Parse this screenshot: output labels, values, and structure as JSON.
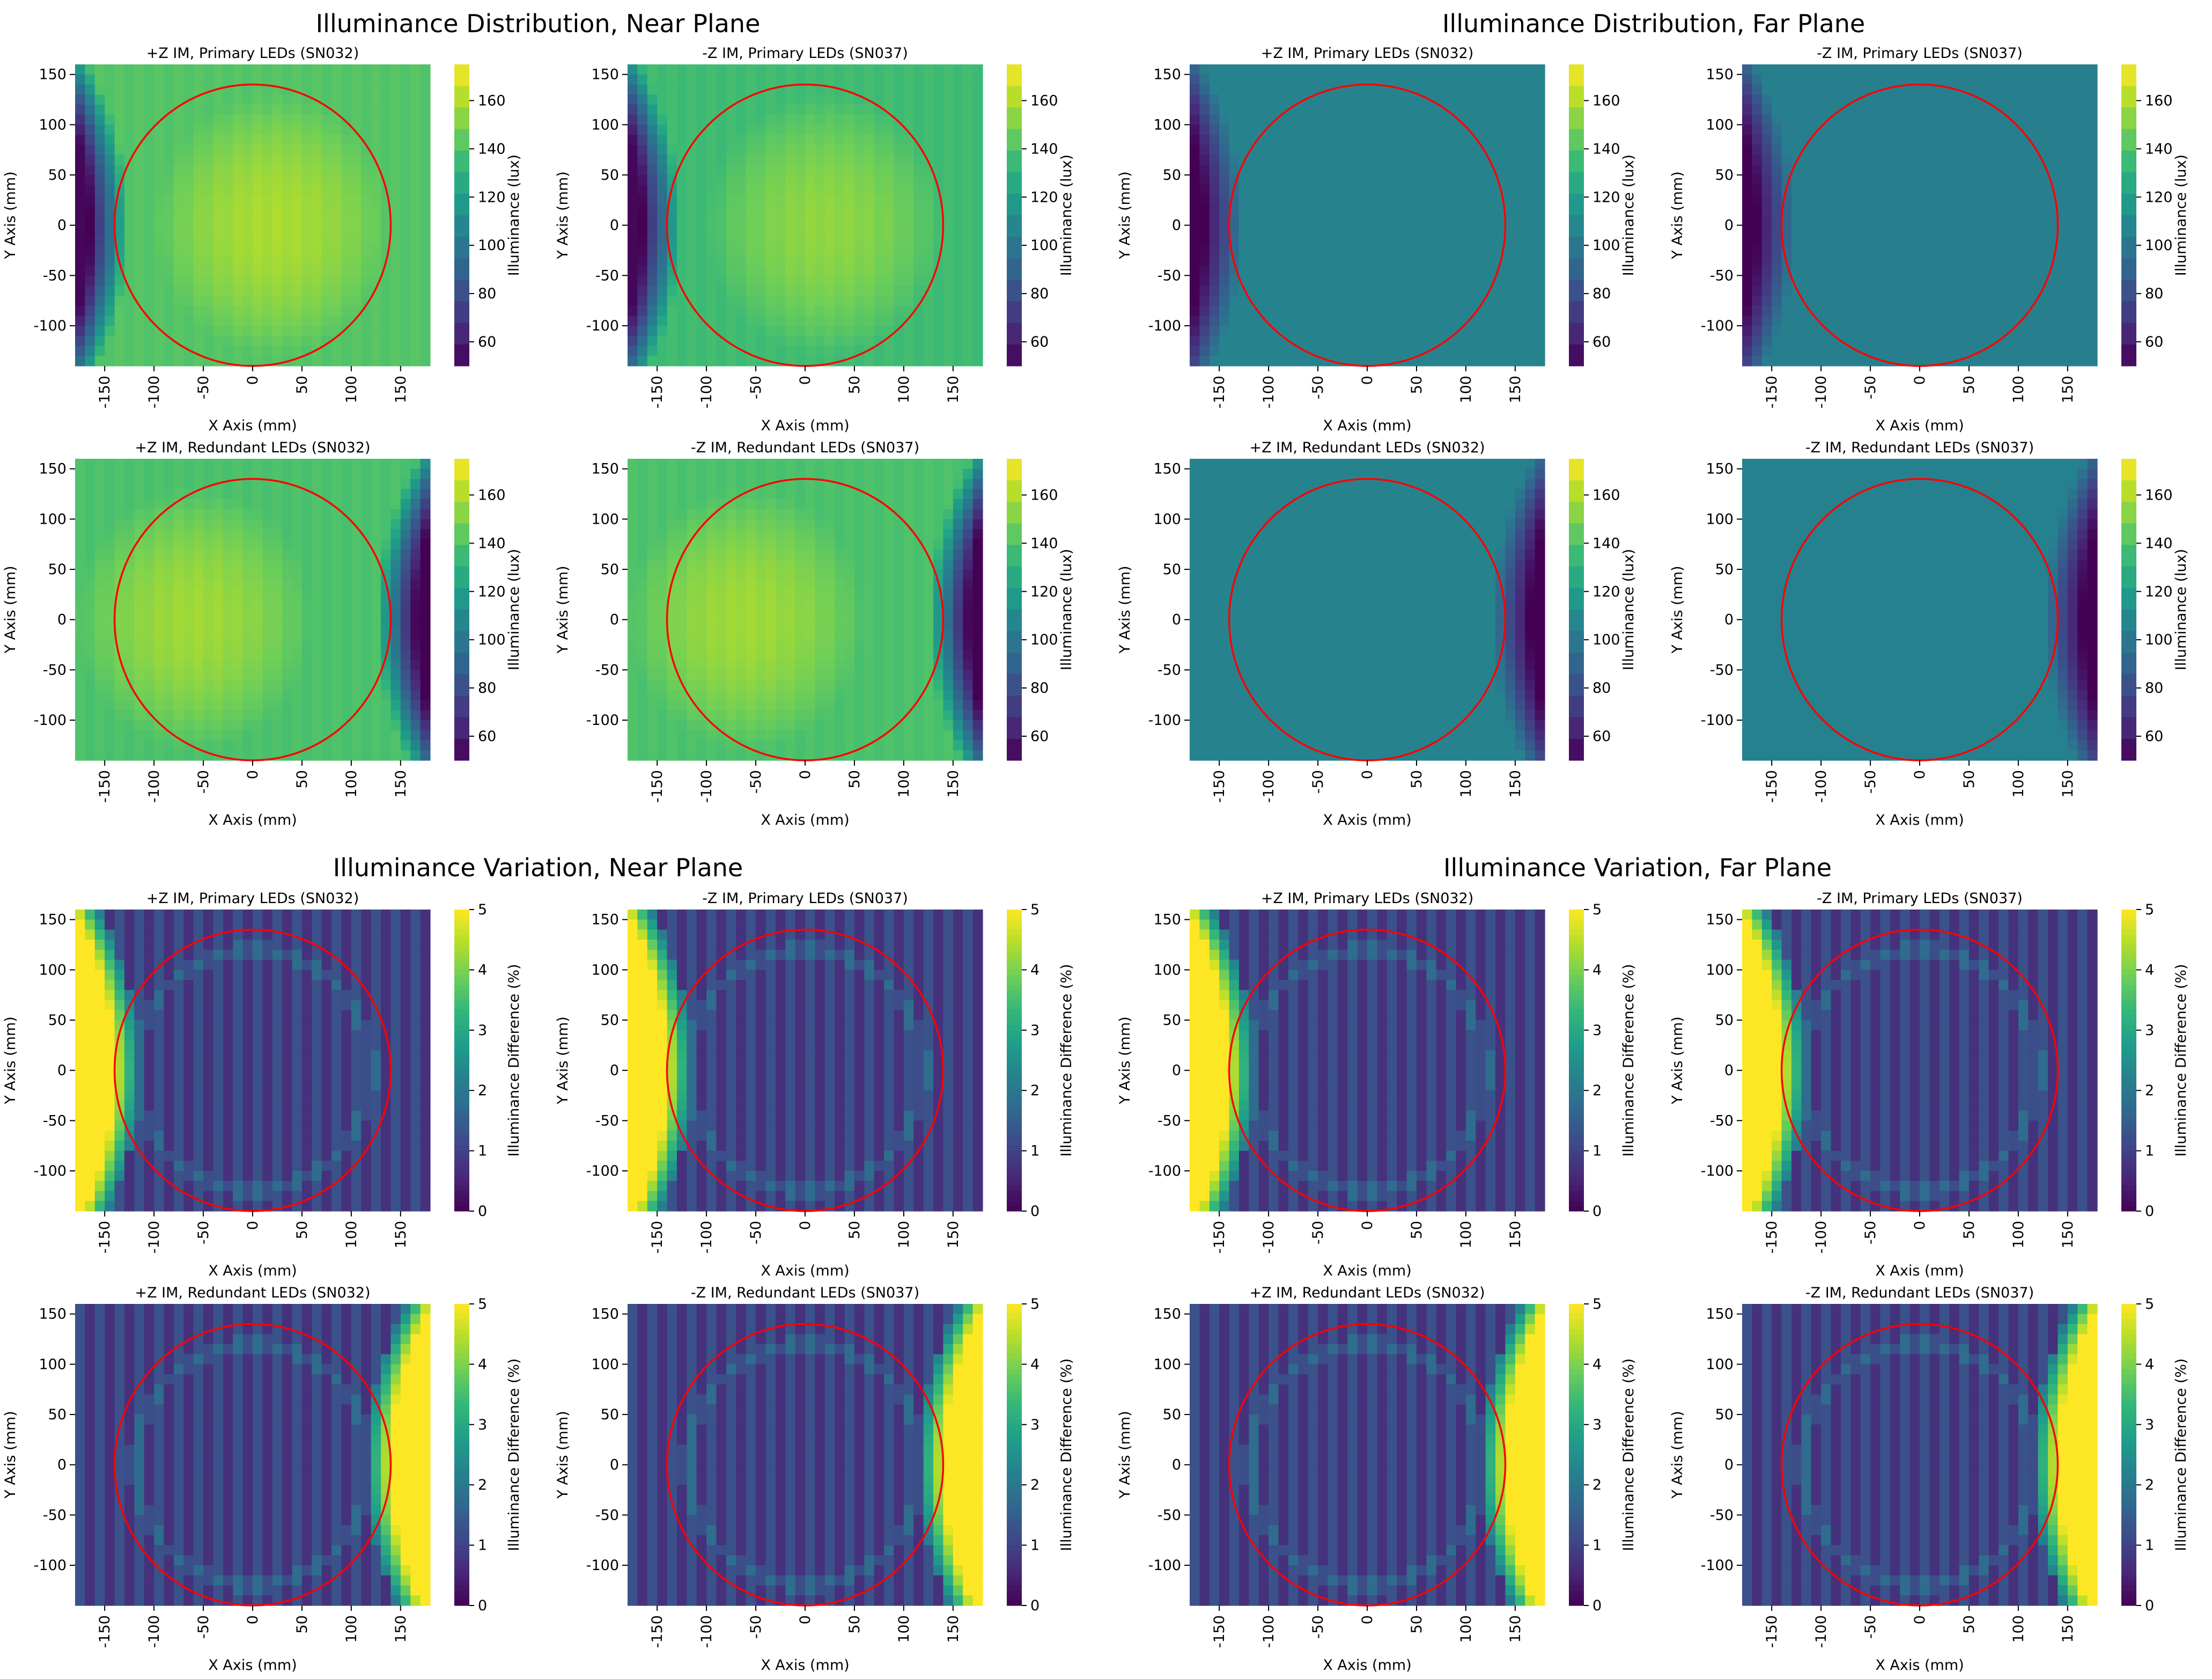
{
  "section_titles": [
    "Illuminance Distribution, Near Plane",
    "Illuminance Distribution, Far Plane",
    "Illuminance Variation, Near Plane",
    "Illuminance Variation, Far Plane"
  ],
  "colors": {
    "circle": "#ff0000",
    "colormap": "viridis",
    "viridis_stops": [
      "#440154",
      "#482878",
      "#3e4989",
      "#31688e",
      "#26828e",
      "#1f9e89",
      "#35b779",
      "#6ece58",
      "#b5de2b",
      "#fde725"
    ]
  },
  "chart_data": [
    {
      "type": "heatmap",
      "panel": "dist-near-1",
      "title": "+Z IM, Primary LEDs (SN032)",
      "xlabel": "X Axis (mm)",
      "ylabel": "Y Axis (mm)",
      "cbar_label": "Illuminance (lux)",
      "xticks": [
        -150,
        -100,
        -50,
        0,
        50,
        100,
        150
      ],
      "xtick_labels": [
        "-150",
        "-100",
        "-50",
        "0",
        "50",
        "100",
        "150"
      ],
      "yticks": [
        150,
        100,
        50,
        0,
        -50,
        -100
      ],
      "ytick_labels": [
        "150",
        "100",
        "50",
        "0",
        "-50",
        "-100"
      ],
      "show_ylabels": true,
      "xlim": [
        -180,
        180
      ],
      "ylim": [
        -140,
        160
      ],
      "clim": [
        50,
        175
      ],
      "cticks": [
        60,
        80,
        100,
        120,
        140,
        160
      ],
      "cbar_type": "banded",
      "circle": {
        "cx": 0,
        "cy": 0,
        "r": 140
      },
      "model": "dist-left",
      "base": 140
    },
    {
      "type": "heatmap",
      "panel": "dist-near-2",
      "title": "-Z IM, Primary LEDs (SN037)",
      "xlabel": "X Axis (mm)",
      "ylabel": "Y Axis (mm)",
      "cbar_label": "Illuminance (lux)",
      "xticks": [
        -150,
        -100,
        -50,
        0,
        50,
        100,
        150
      ],
      "xtick_labels": [
        "-150",
        "-100",
        "-50",
        "0",
        "50",
        "100",
        "150"
      ],
      "yticks": [
        150,
        100,
        50,
        0,
        -50,
        -100
      ],
      "ytick_labels": [
        "150",
        "100",
        "50",
        "0",
        "-50",
        "-100"
      ],
      "show_ylabels": true,
      "xlim": [
        -180,
        180
      ],
      "ylim": [
        -140,
        160
      ],
      "clim": [
        50,
        175
      ],
      "cticks": [
        60,
        80,
        100,
        120,
        140,
        160
      ],
      "cbar_type": "banded",
      "circle": {
        "cx": 0,
        "cy": 0,
        "r": 140
      },
      "model": "dist-left",
      "base": 135
    },
    {
      "type": "heatmap",
      "panel": "dist-far-1",
      "title": "+Z IM, Primary LEDs (SN032)",
      "xlabel": "X Axis (mm)",
      "ylabel": "Y Axis (mm)",
      "cbar_label": "Illuminance (lux)",
      "xticks": [
        -150,
        -100,
        -50,
        0,
        50,
        100,
        150
      ],
      "xtick_labels": [
        "-150",
        "-100",
        "-50",
        "0",
        "50",
        "100",
        "150"
      ],
      "yticks": [
        150,
        100,
        50,
        0,
        -50,
        -100
      ],
      "ytick_labels": [
        "150",
        "100",
        "50",
        "0",
        "-50",
        "-100"
      ],
      "show_ylabels": true,
      "xlim": [
        -180,
        180
      ],
      "ylim": [
        -140,
        160
      ],
      "clim": [
        50,
        175
      ],
      "cticks": [
        60,
        80,
        100,
        120,
        140,
        160
      ],
      "cbar_type": "banded",
      "circle": {
        "cx": 0,
        "cy": 0,
        "r": 140
      },
      "model": "dist-left",
      "base": 106
    },
    {
      "type": "heatmap",
      "panel": "dist-far-2",
      "title": "-Z IM, Primary LEDs (SN037)",
      "xlabel": "X Axis (mm)",
      "ylabel": "Y Axis (mm)",
      "cbar_label": "Illuminance (lux)",
      "xticks": [
        -150,
        -100,
        -50,
        0,
        50,
        100,
        150
      ],
      "xtick_labels": [
        "-150",
        "-100",
        "-50",
        "0",
        "50",
        "100",
        "150"
      ],
      "yticks": [
        150,
        100,
        50,
        0,
        -50,
        -100
      ],
      "ytick_labels": [
        "150",
        "100",
        "50",
        "0",
        "-50",
        "-100"
      ],
      "show_ylabels": true,
      "xlim": [
        -180,
        180
      ],
      "ylim": [
        -140,
        160
      ],
      "clim": [
        50,
        175
      ],
      "cticks": [
        60,
        80,
        100,
        120,
        140,
        160
      ],
      "cbar_type": "banded",
      "circle": {
        "cx": 0,
        "cy": 0,
        "r": 140
      },
      "model": "dist-left",
      "base": 104
    },
    {
      "type": "heatmap",
      "panel": "dist-near-3",
      "title": "+Z IM, Redundant LEDs (SN032)",
      "xlabel": "X Axis (mm)",
      "ylabel": "Y Axis (mm)",
      "cbar_label": "Illuminance (lux)",
      "xticks": [
        -150,
        -100,
        -50,
        0,
        50,
        100,
        150
      ],
      "xtick_labels": [
        "-150",
        "-100",
        "-50",
        "0",
        "50",
        "100",
        "150"
      ],
      "yticks": [
        150,
        100,
        50,
        0,
        -50,
        -100
      ],
      "ytick_labels": [
        "150",
        "100",
        "50",
        "0",
        "-50",
        "-100"
      ],
      "show_ylabels": true,
      "xlim": [
        -180,
        180
      ],
      "ylim": [
        -140,
        160
      ],
      "clim": [
        50,
        175
      ],
      "cticks": [
        60,
        80,
        100,
        120,
        140,
        160
      ],
      "cbar_type": "banded",
      "circle": {
        "cx": 0,
        "cy": 0,
        "r": 140
      },
      "model": "dist-right",
      "base": 138
    },
    {
      "type": "heatmap",
      "panel": "dist-near-4",
      "title": "-Z IM, Redundant LEDs (SN037)",
      "xlabel": "X Axis (mm)",
      "ylabel": "Y Axis (mm)",
      "cbar_label": "Illuminance (lux)",
      "xticks": [
        -150,
        -100,
        -50,
        0,
        50,
        100,
        150
      ],
      "xtick_labels": [
        "-150",
        "-100",
        "-50",
        "0",
        "50",
        "100",
        "150"
      ],
      "yticks": [
        150,
        100,
        50,
        0,
        -50,
        -100
      ],
      "ytick_labels": [
        "150",
        "100",
        "50",
        "0",
        "-50",
        "-100"
      ],
      "show_ylabels": true,
      "xlim": [
        -180,
        180
      ],
      "ylim": [
        -140,
        160
      ],
      "clim": [
        50,
        175
      ],
      "cticks": [
        60,
        80,
        100,
        120,
        140,
        160
      ],
      "cbar_type": "banded",
      "circle": {
        "cx": 0,
        "cy": 0,
        "r": 140
      },
      "model": "dist-right",
      "base": 138
    },
    {
      "type": "heatmap",
      "panel": "dist-far-3",
      "title": "+Z IM, Redundant LEDs (SN032)",
      "xlabel": "X Axis (mm)",
      "ylabel": "Y Axis (mm)",
      "cbar_label": "Illuminance (lux)",
      "xticks": [
        -150,
        -100,
        -50,
        0,
        50,
        100,
        150
      ],
      "xtick_labels": [
        "-150",
        "-100",
        "-50",
        "0",
        "50",
        "100",
        "150"
      ],
      "yticks": [
        150,
        100,
        50,
        0,
        -50,
        -100
      ],
      "ytick_labels": [
        "150",
        "100",
        "50",
        "0",
        "-50",
        "-100"
      ],
      "show_ylabels": true,
      "xlim": [
        -180,
        180
      ],
      "ylim": [
        -140,
        160
      ],
      "clim": [
        50,
        175
      ],
      "cticks": [
        60,
        80,
        100,
        120,
        140,
        160
      ],
      "cbar_type": "banded",
      "circle": {
        "cx": 0,
        "cy": 0,
        "r": 140
      },
      "model": "dist-right",
      "base": 106
    },
    {
      "type": "heatmap",
      "panel": "dist-far-4",
      "title": "-Z IM, Redundant LEDs (SN037)",
      "xlabel": "X Axis (mm)",
      "ylabel": "Y Axis (mm)",
      "cbar_label": "Illuminance (lux)",
      "xticks": [
        -150,
        -100,
        -50,
        0,
        50,
        100,
        150
      ],
      "xtick_labels": [
        "-150",
        "-100",
        "-50",
        "0",
        "50",
        "100",
        "150"
      ],
      "yticks": [
        150,
        100,
        50,
        0,
        -50,
        -100
      ],
      "ytick_labels": [
        "150",
        "100",
        "50",
        "0",
        "-50",
        "-100"
      ],
      "show_ylabels": true,
      "xlim": [
        -180,
        180
      ],
      "ylim": [
        -140,
        160
      ],
      "clim": [
        50,
        175
      ],
      "cticks": [
        60,
        80,
        100,
        120,
        140,
        160
      ],
      "cbar_type": "banded",
      "circle": {
        "cx": 0,
        "cy": 0,
        "r": 140
      },
      "model": "dist-right",
      "base": 105
    },
    {
      "type": "heatmap",
      "panel": "var-near-1",
      "title": "+Z IM, Primary LEDs (SN032)",
      "xlabel": "X Axis (mm)",
      "ylabel": "Y Axis (mm)",
      "cbar_label": "Illuminance Difference (%)",
      "xticks": [
        -150,
        -100,
        -50,
        0,
        50,
        100,
        150
      ],
      "xtick_labels": [
        "-150",
        "-100",
        "-50",
        "0",
        "50",
        "100",
        "150"
      ],
      "yticks": [
        150,
        100,
        50,
        0,
        -50,
        -100
      ],
      "ytick_labels": [
        "150",
        "100",
        "50",
        "0",
        "-50",
        "-100"
      ],
      "show_ylabels": true,
      "xlim": [
        -180,
        180
      ],
      "ylim": [
        -140,
        160
      ],
      "clim": [
        0,
        5
      ],
      "cticks": [
        0,
        1,
        2,
        3,
        4,
        5
      ],
      "cbar_type": "continuous",
      "circle": {
        "cx": 0,
        "cy": 0,
        "r": 140
      },
      "model": "var-left"
    },
    {
      "type": "heatmap",
      "panel": "var-near-2",
      "title": "-Z IM, Primary LEDs (SN037)",
      "xlabel": "X Axis (mm)",
      "ylabel": "Y Axis (mm)",
      "cbar_label": "Illuminance Difference (%)",
      "xticks": [
        -150,
        -100,
        -50,
        0,
        50,
        100,
        150
      ],
      "xtick_labels": [
        "-150",
        "-100",
        "-50",
        "0",
        "50",
        "100",
        "150"
      ],
      "yticks": [
        150,
        100,
        50,
        0,
        -50,
        -100
      ],
      "ytick_labels": [
        "150",
        "100",
        "50",
        "0",
        "-50",
        "-100"
      ],
      "show_ylabels": true,
      "xlim": [
        -180,
        180
      ],
      "ylim": [
        -140,
        160
      ],
      "clim": [
        0,
        5
      ],
      "cticks": [
        0,
        1,
        2,
        3,
        4,
        5
      ],
      "cbar_type": "continuous",
      "circle": {
        "cx": 0,
        "cy": 0,
        "r": 140
      },
      "model": "var-left"
    },
    {
      "type": "heatmap",
      "panel": "var-far-1",
      "title": "+Z IM, Primary LEDs (SN032)",
      "xlabel": "X Axis (mm)",
      "ylabel": "Y Axis (mm)",
      "cbar_label": "Illuminance Difference (%)",
      "xticks": [
        -150,
        -100,
        -50,
        0,
        50,
        100,
        150
      ],
      "xtick_labels": [
        "-150",
        "-100",
        "-50",
        "0",
        "50",
        "100",
        "150"
      ],
      "yticks": [
        150,
        100,
        50,
        0,
        -50,
        -100
      ],
      "ytick_labels": [
        "150",
        "100",
        "50",
        "0",
        "-50",
        "-100"
      ],
      "show_ylabels": true,
      "xlim": [
        -180,
        180
      ],
      "ylim": [
        -140,
        160
      ],
      "clim": [
        0,
        5
      ],
      "cticks": [
        0,
        1,
        2,
        3,
        4,
        5
      ],
      "cbar_type": "continuous",
      "circle": {
        "cx": 0,
        "cy": 0,
        "r": 140
      },
      "model": "var-left"
    },
    {
      "type": "heatmap",
      "panel": "var-far-2",
      "title": "-Z IM, Primary LEDs (SN037)",
      "xlabel": "X Axis (mm)",
      "ylabel": "Y Axis (mm)",
      "cbar_label": "Illuminance Difference (%)",
      "xticks": [
        -150,
        -100,
        -50,
        0,
        50,
        100,
        150
      ],
      "xtick_labels": [
        "-150",
        "-100",
        "-50",
        "0",
        "50",
        "100",
        "150"
      ],
      "yticks": [
        150,
        100,
        50,
        0,
        -50,
        -100
      ],
      "ytick_labels": [
        "150",
        "100",
        "50",
        "0",
        "-50",
        "-100"
      ],
      "show_ylabels": true,
      "xlim": [
        -180,
        180
      ],
      "ylim": [
        -140,
        160
      ],
      "clim": [
        0,
        5
      ],
      "cticks": [
        0,
        1,
        2,
        3,
        4,
        5
      ],
      "cbar_type": "continuous",
      "circle": {
        "cx": 0,
        "cy": 0,
        "r": 140
      },
      "model": "var-left"
    },
    {
      "type": "heatmap",
      "panel": "var-near-3",
      "title": "+Z IM, Redundant LEDs (SN032)",
      "xlabel": "X Axis (mm)",
      "ylabel": "Y Axis (mm)",
      "cbar_label": "Illuminance Difference (%)",
      "xticks": [
        -150,
        -100,
        -50,
        0,
        50,
        100,
        150
      ],
      "xtick_labels": [
        "-150",
        "-100",
        "-50",
        "0",
        "50",
        "100",
        "150"
      ],
      "yticks": [
        150,
        100,
        50,
        0,
        -50,
        -100
      ],
      "ytick_labels": [
        "150",
        "100",
        "50",
        "0",
        "-50",
        "-100"
      ],
      "show_ylabels": true,
      "xlim": [
        -180,
        180
      ],
      "ylim": [
        -140,
        160
      ],
      "clim": [
        0,
        5
      ],
      "cticks": [
        0,
        1,
        2,
        3,
        4,
        5
      ],
      "cbar_type": "continuous",
      "circle": {
        "cx": 0,
        "cy": 0,
        "r": 140
      },
      "model": "var-right"
    },
    {
      "type": "heatmap",
      "panel": "var-near-4",
      "title": "-Z IM, Redundant LEDs (SN037)",
      "xlabel": "X Axis (mm)",
      "ylabel": "Y Axis (mm)",
      "cbar_label": "Illuminance Difference (%)",
      "xticks": [
        -150,
        -100,
        -50,
        0,
        50,
        100,
        150
      ],
      "xtick_labels": [
        "-150",
        "-100",
        "-50",
        "0",
        "50",
        "100",
        "150"
      ],
      "yticks": [
        150,
        100,
        50,
        0,
        -50,
        -100
      ],
      "ytick_labels": [
        "150",
        "100",
        "50",
        "0",
        "-50",
        "-100"
      ],
      "show_ylabels": true,
      "xlim": [
        -180,
        180
      ],
      "ylim": [
        -140,
        160
      ],
      "clim": [
        0,
        5
      ],
      "cticks": [
        0,
        1,
        2,
        3,
        4,
        5
      ],
      "cbar_type": "continuous",
      "circle": {
        "cx": 0,
        "cy": 0,
        "r": 140
      },
      "model": "var-right"
    },
    {
      "type": "heatmap",
      "panel": "var-far-3",
      "title": "+Z IM, Redundant LEDs (SN032)",
      "xlabel": "X Axis (mm)",
      "ylabel": "Y Axis (mm)",
      "cbar_label": "Illuminance Difference (%)",
      "xticks": [
        -150,
        -100,
        -50,
        0,
        50,
        100,
        150
      ],
      "xtick_labels": [
        "-150",
        "-100",
        "-50",
        "0",
        "50",
        "100",
        "150"
      ],
      "yticks": [
        150,
        100,
        50,
        0,
        -50,
        -100
      ],
      "ytick_labels": [
        "150",
        "100",
        "50",
        "0",
        "-50",
        "-100"
      ],
      "show_ylabels": true,
      "xlim": [
        -180,
        180
      ],
      "ylim": [
        -140,
        160
      ],
      "clim": [
        0,
        5
      ],
      "cticks": [
        0,
        1,
        2,
        3,
        4,
        5
      ],
      "cbar_type": "continuous",
      "circle": {
        "cx": 0,
        "cy": 0,
        "r": 140
      },
      "model": "var-right"
    },
    {
      "type": "heatmap",
      "panel": "var-far-4",
      "title": "-Z IM, Redundant LEDs (SN037)",
      "xlabel": "X Axis (mm)",
      "ylabel": "Y Axis (mm)",
      "cbar_label": "Illuminance Difference (%)",
      "xticks": [
        -150,
        -100,
        -50,
        0,
        50,
        100,
        150
      ],
      "xtick_labels": [
        "-150",
        "-100",
        "-50",
        "0",
        "50",
        "100",
        "150"
      ],
      "yticks": [
        150,
        100,
        50,
        0,
        -50,
        -100
      ],
      "ytick_labels": [
        "150",
        "100",
        "50",
        "0",
        "-50",
        "-100"
      ],
      "show_ylabels": true,
      "xlim": [
        -180,
        180
      ],
      "ylim": [
        -140,
        160
      ],
      "clim": [
        0,
        5
      ],
      "cticks": [
        0,
        1,
        2,
        3,
        4,
        5
      ],
      "cbar_type": "continuous",
      "circle": {
        "cx": 0,
        "cy": 0,
        "r": 140
      },
      "model": "var-right"
    }
  ]
}
